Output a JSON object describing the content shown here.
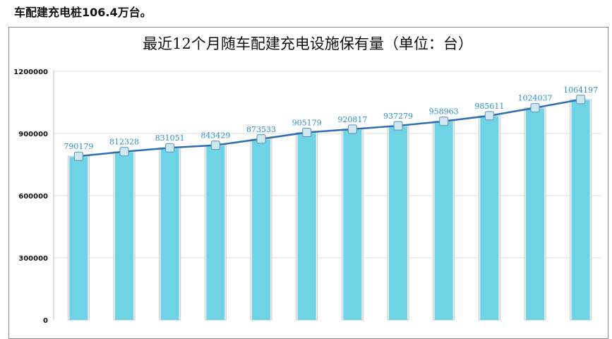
{
  "intro_text": "车配建充电桩106.4万台。",
  "chart_data": {
    "type": "bar",
    "title": "最近12个月随车配建充电设施保有量（单位：台）",
    "xlabel": "",
    "ylabel": "",
    "ylim": [
      0,
      1200000
    ],
    "yticks": [
      0,
      300000,
      600000,
      900000,
      1200000
    ],
    "grid": true,
    "legend": "none",
    "overlay_line": true,
    "values": [
      790179,
      812328,
      831051,
      843429,
      873533,
      905179,
      920817,
      937279,
      958963,
      985611,
      1024037,
      1064197
    ],
    "value_labels": [
      "790179",
      "812328",
      "831051",
      "843429",
      "873533",
      "905179",
      "920817",
      "937279",
      "958963",
      "985611",
      "1024037",
      "1064197"
    ],
    "colors": {
      "bar": "#6fd3e6",
      "line": "#2e6db0",
      "marker": "#cfe8f0",
      "label": "#2a8fc6"
    }
  }
}
